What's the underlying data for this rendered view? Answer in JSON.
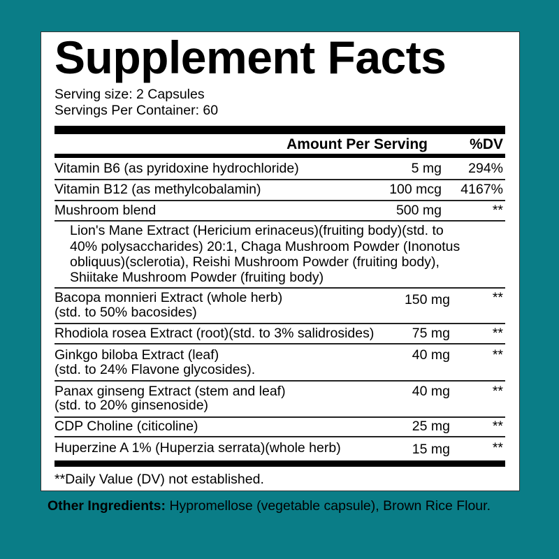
{
  "title": "Supplement Facts",
  "serving_size": "Serving size: 2 Capsules",
  "servings_per_container": "Servings Per Container: 60",
  "header": {
    "amount": "Amount Per Serving",
    "dv": "%DV"
  },
  "rows": [
    {
      "name": "Vitamin B6 (as pyridoxine hydrochloride)",
      "amount": "5 mg",
      "dv": "294%"
    },
    {
      "name": "Vitamin B12 (as methylcobalamin)",
      "amount": "100 mcg",
      "dv": "4167%"
    },
    {
      "name": "Mushroom blend",
      "amount": "500 mg",
      "dv": "**",
      "sub": [
        "Lion's Mane Extract (Hericium erinaceus)(fruiting body)(std. to",
        "40% polysaccharides) 20:1, Chaga Mushroom Powder (Inonotus",
        "obliquus)(sclerotia), Reishi Mushroom Powder (fruiting body),",
        "Shiitake Mushroom Powder (fruiting body)"
      ]
    },
    {
      "name": "Bacopa monnieri Extract (whole herb)",
      "name2": "(std. to 50% bacosides)",
      "amount": "150 mg",
      "dv": "**"
    },
    {
      "name": "Rhodiola rosea Extract (root)(std. to 3% salidrosides)",
      "amount": "75 mg",
      "dv": "**"
    },
    {
      "name": "Ginkgo biloba Extract (leaf)",
      "name2": "(std. to 24% Flavone glycosides).",
      "amount": "40 mg",
      "dv": "**"
    },
    {
      "name": "Panax ginseng Extract (stem and leaf)",
      "name2": "(std. to 20% ginsenoside)",
      "amount": "40 mg",
      "dv": "**"
    },
    {
      "name": "CDP Choline (citicoline)",
      "amount": "25 mg",
      "dv": "**"
    },
    {
      "name": "Huperzine A 1% (Huperzia serrata)(whole herb)",
      "amount": "15 mg",
      "dv": "**"
    }
  ],
  "footnote": "**Daily Value (DV) not established.",
  "other_ingredients": {
    "label": "Other Ingredients:",
    "text": " Hypromellose (vegetable capsule), Brown Rice Flour."
  },
  "colors": {
    "background": "#0a7d87",
    "panel": "#ffffff"
  }
}
